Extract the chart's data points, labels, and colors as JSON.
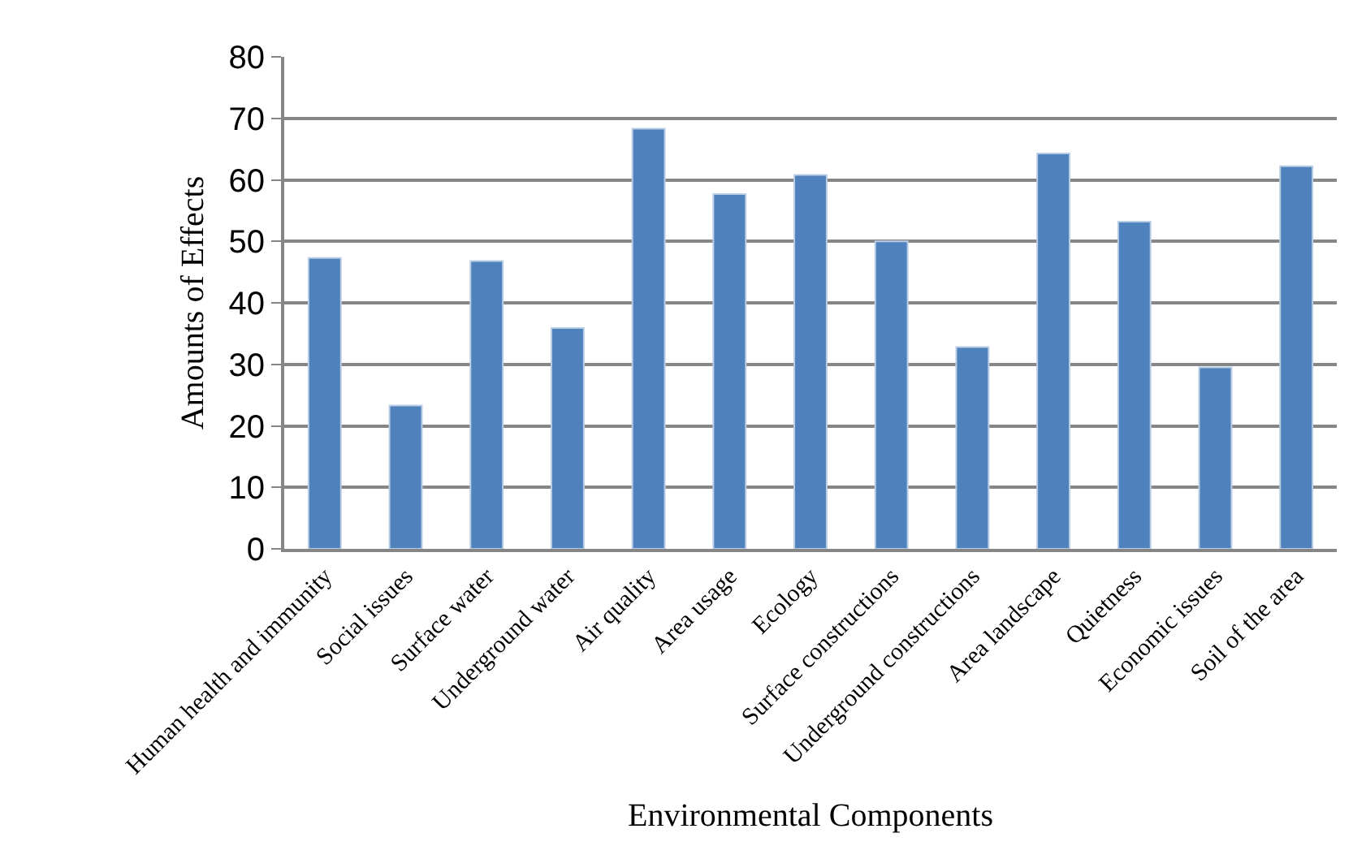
{
  "chart_data": {
    "type": "bar",
    "xlabel": "Environmental Components",
    "ylabel": "Amounts of Effects",
    "categories": [
      "Human health and immunity",
      "Social issues",
      "Surface water",
      "Underground water",
      "Air quality",
      "Area usage",
      "Ecology",
      "Surface constructions",
      "Underground constructions",
      "Area landscape",
      "Quietness",
      "Economic issues",
      "Soil of the area"
    ],
    "values": [
      47.3,
      23.3,
      46.8,
      35.9,
      68.3,
      57.7,
      60.8,
      50.0,
      32.8,
      64.3,
      53.2,
      29.5,
      62.2
    ],
    "color": "#4f81bd",
    "ylim": [
      0,
      80
    ],
    "yticks": [
      0,
      10,
      20,
      30,
      40,
      50,
      60,
      70,
      80
    ],
    "grid": "y",
    "legend": false
  }
}
